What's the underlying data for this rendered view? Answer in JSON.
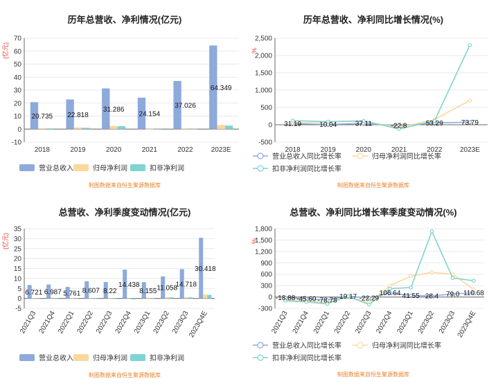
{
  "chart_data": [
    {
      "type": "bar",
      "title": "历年总营收、净利情况(亿元)",
      "unit": "(亿元)",
      "categories": [
        "2018",
        "2019",
        "2020",
        "2021",
        "2022",
        "2023E"
      ],
      "series": [
        {
          "name": "营业总收入",
          "color": "#8eaadb",
          "values": [
            20.735,
            22.818,
            31.286,
            24.154,
            37.026,
            64.349
          ],
          "labels": [
            "20.735",
            "22.818",
            "31.286",
            "24.154",
            "37.026",
            "64.349"
          ]
        },
        {
          "name": "归母净利润",
          "color": "#fdd89c",
          "values": [
            0.6,
            1.2,
            2.5,
            0.1,
            0.3,
            3.2
          ]
        },
        {
          "name": "扣非净利润",
          "color": "#7fd3d3",
          "values": [
            0.5,
            1.0,
            2.2,
            -0.3,
            0.1,
            2.7
          ]
        }
      ],
      "ylim": [
        -10,
        70
      ],
      "yticks": [
        -10,
        0,
        10,
        20,
        30,
        40,
        50,
        60,
        70
      ],
      "source": "制图数据来自恒生聚源数据库"
    },
    {
      "type": "line",
      "title": "历年总营收、净利同比增长情况(%)",
      "unit": "%",
      "categories": [
        "2018",
        "2019",
        "2020",
        "2021",
        "2022",
        "2023E"
      ],
      "series": [
        {
          "name": "营业总收入同比增长率",
          "color": "#8eaadb",
          "values": [
            31.19,
            10.04,
            37.11,
            -22.8,
            53.29,
            73.79
          ],
          "labels": [
            "31.19",
            "10.04",
            "37.11",
            "-22.8",
            "53.29",
            "73.79"
          ]
        },
        {
          "name": "归母净利润同比增长率",
          "color": "#fdd89c",
          "values": [
            60,
            80,
            100,
            -80,
            150,
            700
          ]
        },
        {
          "name": "扣非净利润同比增长率",
          "color": "#7fd3d3",
          "values": [
            120,
            90,
            110,
            -120,
            110,
            2300
          ]
        }
      ],
      "ylim": [
        -500,
        2500
      ],
      "yticks": [
        -500,
        0,
        500,
        1000,
        1500,
        2000,
        2500
      ],
      "ytick_labels": [
        "-500",
        "0",
        "500",
        "1,000",
        "1,500",
        "2,000",
        "2,500"
      ],
      "source": "制图数据来自恒生聚源数据库"
    },
    {
      "type": "bar",
      "title": "总营收、净利季度变动情况(亿元)",
      "unit": "(亿元)",
      "categories": [
        "2021Q3",
        "2021Q4",
        "2022Q1",
        "2022Q2",
        "2022Q3",
        "2022Q4",
        "2023Q1",
        "2023Q2",
        "2023Q3",
        "2023Q4E"
      ],
      "series": [
        {
          "name": "营业总收入",
          "color": "#8eaadb",
          "values": [
            6.721,
            6.987,
            5.761,
            8.607,
            8.22,
            14.438,
            8.155,
            11.058,
            14.718,
            30.418
          ],
          "labels": [
            "6.721",
            "6.987",
            "5.761",
            "8.607",
            "8.22",
            "14.438",
            "8.155",
            "11.058",
            "14.718",
            "30.418"
          ]
        },
        {
          "name": "归母净利润",
          "color": "#fdd89c",
          "values": [
            0.2,
            0.3,
            0.1,
            0.2,
            0.1,
            -0.3,
            0.2,
            0.6,
            0.6,
            2.0
          ]
        },
        {
          "name": "扣非净利润",
          "color": "#7fd3d3",
          "values": [
            0.1,
            0.2,
            0.05,
            0.1,
            0.05,
            -0.5,
            0.1,
            0.5,
            0.5,
            1.8
          ]
        }
      ],
      "ylim": [
        -5,
        35
      ],
      "yticks": [
        -5,
        0,
        5,
        10,
        15,
        20,
        25,
        30,
        35
      ],
      "source": "制图数据来自恒生聚源数据库"
    },
    {
      "type": "line",
      "title": "总营收、净利同比增长率季度变动情况(%)",
      "unit": "%",
      "categories": [
        "2021Q3",
        "2021Q4",
        "2022Q1",
        "2022Q2",
        "2022Q3",
        "2022Q4",
        "2023Q1",
        "2023Q2",
        "2023Q3",
        "2023Q4E"
      ],
      "series": [
        {
          "name": "营业总收入同比增长率",
          "color": "#8eaadb",
          "values": [
            -18.88,
            -45.6,
            -78.78,
            19.17,
            -22.29,
            106.64,
            41.55,
            28.4,
            79.0,
            110.68
          ],
          "labels": [
            "-18.88",
            "-45.60",
            "-78.78",
            "19.17",
            "-22.29",
            "106.64",
            "41.55",
            "28.4",
            "79.0",
            "110.68"
          ]
        },
        {
          "name": "归母净利润同比增长率",
          "color": "#fdd89c",
          "values": [
            -80,
            -100,
            -150,
            0,
            -150,
            300,
            550,
            650,
            600,
            200
          ]
        },
        {
          "name": "扣非净利润同比增长率",
          "color": "#7fd3d3",
          "values": [
            -100,
            -130,
            -180,
            20,
            -200,
            220,
            250,
            1730,
            500,
            430
          ]
        }
      ],
      "ylim": [
        -300,
        1800
      ],
      "yticks": [
        -300,
        0,
        300,
        600,
        900,
        1200,
        1500,
        1800
      ],
      "ytick_labels": [
        "-300",
        "0",
        "300",
        "600",
        "900",
        "1,200",
        "1,500",
        "1,800"
      ],
      "source": "制图数据来自恒生聚源数据库"
    }
  ]
}
